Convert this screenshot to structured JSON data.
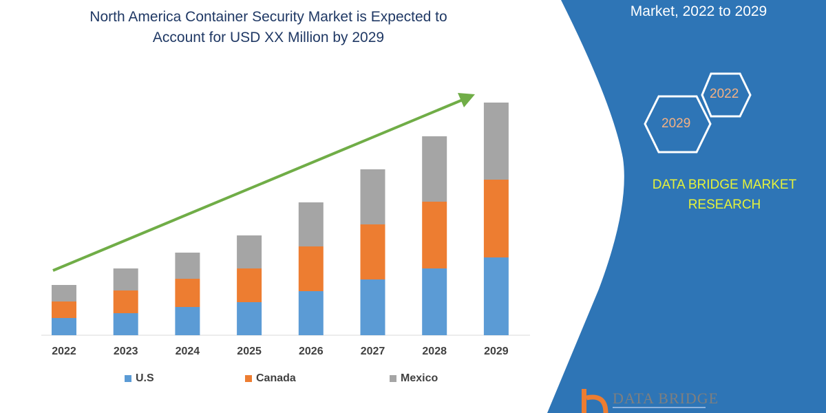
{
  "header": {
    "title_line1": "North America Container Security Market is Expected to",
    "title_line2": "Account for USD XX Million by 2029"
  },
  "side_panel": {
    "subtitle": "Market, 2022 to 2029",
    "hex_start": "2022",
    "hex_end": "2029",
    "brand_line1": "DATA BRIDGE MARKET",
    "brand_line2": "RESEARCH",
    "logo_text": "DATA BRIDGE",
    "colors": {
      "panel": "#2e75b6",
      "brand_text": "#e6f23a",
      "logo_accent": "#ed7d31"
    }
  },
  "chart_data": {
    "type": "bar",
    "stacked": true,
    "title": "North America Container Security Market is Expected to Account for USD XX Million by 2029",
    "categories": [
      "2022",
      "2023",
      "2024",
      "2025",
      "2026",
      "2027",
      "2028",
      "2029"
    ],
    "series": [
      {
        "name": "U.S",
        "color": "#5b9bd5",
        "values": [
          25,
          32,
          41,
          48,
          64,
          81,
          97,
          113
        ]
      },
      {
        "name": "Canada",
        "color": "#ed7d31",
        "values": [
          24,
          33,
          41,
          49,
          65,
          80,
          97,
          113
        ]
      },
      {
        "name": "Mexico",
        "color": "#a5a5a5",
        "values": [
          24,
          32,
          38,
          48,
          64,
          80,
          95,
          112
        ]
      }
    ],
    "ylim": [
      0,
      340
    ],
    "y_axis_shown": false,
    "grid": false,
    "legend": "bottom",
    "trend_arrow": {
      "color": "#70ad47",
      "direction": "up-right"
    }
  }
}
